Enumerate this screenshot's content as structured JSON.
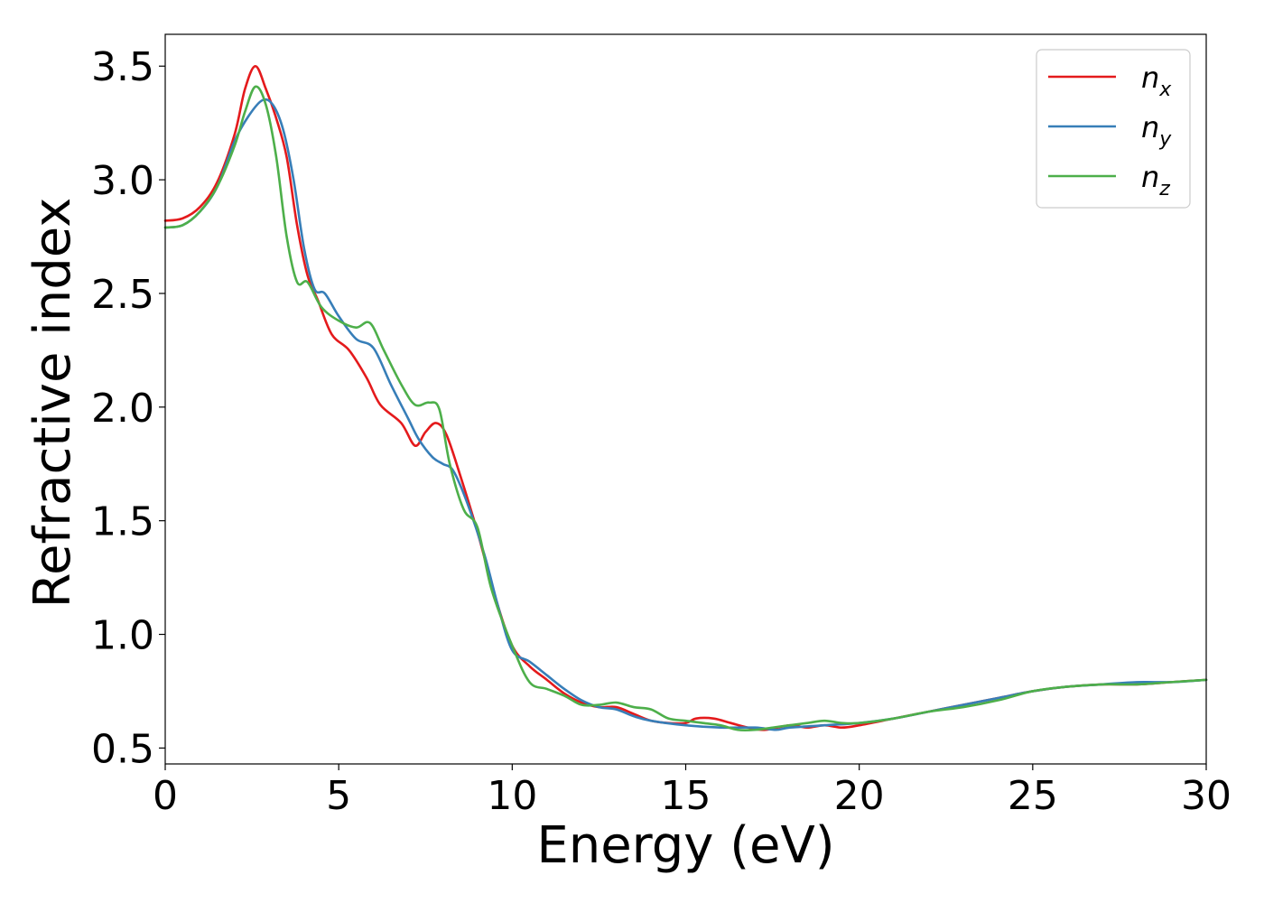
{
  "chart_data": {
    "type": "line",
    "title": "",
    "xlabel": "Energy (eV)",
    "ylabel": "Refractive index",
    "xlim": [
      0,
      30
    ],
    "ylim": [
      0.43,
      3.64
    ],
    "x_ticks": [
      0,
      5,
      10,
      15,
      20,
      25,
      30
    ],
    "x_tick_labels": [
      "0",
      "5",
      "10",
      "15",
      "20",
      "25",
      "30"
    ],
    "y_ticks": [
      0.5,
      1.0,
      1.5,
      2.0,
      2.5,
      3.0,
      3.5
    ],
    "y_tick_labels": [
      "0.5",
      "1.0",
      "1.5",
      "2.0",
      "2.5",
      "3.0",
      "3.5"
    ],
    "grid": false,
    "legend_position": "top-right",
    "series": [
      {
        "name": "n_x",
        "label_base": "n",
        "label_sub": "x",
        "color": "#e41a1c",
        "points": [
          [
            0,
            2.82
          ],
          [
            0.5,
            2.83
          ],
          [
            1.0,
            2.88
          ],
          [
            1.5,
            2.99
          ],
          [
            2.0,
            3.2
          ],
          [
            2.3,
            3.4
          ],
          [
            2.6,
            3.5
          ],
          [
            2.9,
            3.4
          ],
          [
            3.2,
            3.27
          ],
          [
            3.5,
            3.1
          ],
          [
            3.8,
            2.8
          ],
          [
            4.1,
            2.58
          ],
          [
            4.4,
            2.47
          ],
          [
            4.8,
            2.32
          ],
          [
            5.3,
            2.25
          ],
          [
            5.8,
            2.13
          ],
          [
            6.2,
            2.01
          ],
          [
            6.8,
            1.93
          ],
          [
            7.2,
            1.83
          ],
          [
            7.5,
            1.89
          ],
          [
            7.8,
            1.93
          ],
          [
            8.1,
            1.88
          ],
          [
            8.5,
            1.7
          ],
          [
            9.0,
            1.45
          ],
          [
            9.5,
            1.17
          ],
          [
            10.0,
            0.95
          ],
          [
            10.5,
            0.86
          ],
          [
            11.0,
            0.8
          ],
          [
            11.5,
            0.74
          ],
          [
            12.0,
            0.7
          ],
          [
            12.5,
            0.68
          ],
          [
            13.0,
            0.68
          ],
          [
            13.5,
            0.65
          ],
          [
            14.0,
            0.62
          ],
          [
            14.5,
            0.61
          ],
          [
            15.0,
            0.61
          ],
          [
            15.3,
            0.63
          ],
          [
            15.8,
            0.63
          ],
          [
            16.3,
            0.61
          ],
          [
            16.8,
            0.59
          ],
          [
            17.3,
            0.58
          ],
          [
            18.0,
            0.6
          ],
          [
            18.5,
            0.59
          ],
          [
            19.0,
            0.6
          ],
          [
            19.5,
            0.59
          ],
          [
            20.0,
            0.6
          ],
          [
            21.0,
            0.63
          ],
          [
            22.0,
            0.66
          ],
          [
            23.0,
            0.69
          ],
          [
            24.0,
            0.72
          ],
          [
            25.0,
            0.75
          ],
          [
            26.0,
            0.77
          ],
          [
            27.0,
            0.78
          ],
          [
            28.0,
            0.78
          ],
          [
            29.0,
            0.79
          ],
          [
            30.0,
            0.8
          ]
        ]
      },
      {
        "name": "n_y",
        "label_base": "n",
        "label_sub": "y",
        "color": "#377eb8",
        "points": [
          [
            0,
            2.79
          ],
          [
            0.5,
            2.8
          ],
          [
            1.0,
            2.86
          ],
          [
            1.5,
            2.97
          ],
          [
            2.0,
            3.17
          ],
          [
            2.4,
            3.28
          ],
          [
            2.8,
            3.35
          ],
          [
            3.1,
            3.33
          ],
          [
            3.4,
            3.22
          ],
          [
            3.7,
            3.0
          ],
          [
            4.0,
            2.7
          ],
          [
            4.3,
            2.52
          ],
          [
            4.6,
            2.5
          ],
          [
            5.0,
            2.4
          ],
          [
            5.5,
            2.3
          ],
          [
            6.0,
            2.26
          ],
          [
            6.5,
            2.1
          ],
          [
            7.0,
            1.95
          ],
          [
            7.3,
            1.86
          ],
          [
            7.7,
            1.78
          ],
          [
            8.0,
            1.75
          ],
          [
            8.3,
            1.72
          ],
          [
            8.7,
            1.58
          ],
          [
            9.2,
            1.35
          ],
          [
            9.6,
            1.12
          ],
          [
            10.0,
            0.93
          ],
          [
            10.5,
            0.88
          ],
          [
            11.0,
            0.82
          ],
          [
            11.5,
            0.76
          ],
          [
            12.0,
            0.71
          ],
          [
            12.5,
            0.68
          ],
          [
            13.0,
            0.67
          ],
          [
            13.5,
            0.64
          ],
          [
            14.0,
            0.62
          ],
          [
            15.0,
            0.6
          ],
          [
            16.0,
            0.59
          ],
          [
            17.0,
            0.59
          ],
          [
            17.6,
            0.58
          ],
          [
            18.0,
            0.59
          ],
          [
            19.0,
            0.6
          ],
          [
            20.0,
            0.61
          ],
          [
            21.0,
            0.63
          ],
          [
            22.0,
            0.66
          ],
          [
            23.0,
            0.69
          ],
          [
            24.0,
            0.72
          ],
          [
            25.0,
            0.75
          ],
          [
            26.0,
            0.77
          ],
          [
            27.0,
            0.78
          ],
          [
            28.0,
            0.79
          ],
          [
            29.0,
            0.79
          ],
          [
            30.0,
            0.8
          ]
        ]
      },
      {
        "name": "n_z",
        "label_base": "n",
        "label_sub": "z",
        "color": "#4daf4a",
        "points": [
          [
            0,
            2.79
          ],
          [
            0.5,
            2.8
          ],
          [
            1.0,
            2.86
          ],
          [
            1.5,
            2.97
          ],
          [
            2.0,
            3.15
          ],
          [
            2.3,
            3.3
          ],
          [
            2.6,
            3.41
          ],
          [
            2.9,
            3.33
          ],
          [
            3.2,
            3.1
          ],
          [
            3.5,
            2.75
          ],
          [
            3.8,
            2.55
          ],
          [
            4.1,
            2.55
          ],
          [
            4.5,
            2.44
          ],
          [
            5.0,
            2.38
          ],
          [
            5.5,
            2.35
          ],
          [
            5.9,
            2.37
          ],
          [
            6.3,
            2.25
          ],
          [
            6.8,
            2.1
          ],
          [
            7.2,
            2.01
          ],
          [
            7.6,
            2.02
          ],
          [
            7.9,
            1.99
          ],
          [
            8.2,
            1.75
          ],
          [
            8.6,
            1.55
          ],
          [
            9.0,
            1.47
          ],
          [
            9.4,
            1.2
          ],
          [
            10.0,
            0.95
          ],
          [
            10.5,
            0.79
          ],
          [
            11.0,
            0.76
          ],
          [
            11.5,
            0.73
          ],
          [
            12.0,
            0.69
          ],
          [
            12.5,
            0.69
          ],
          [
            13.0,
            0.7
          ],
          [
            13.5,
            0.68
          ],
          [
            14.0,
            0.67
          ],
          [
            14.5,
            0.63
          ],
          [
            15.0,
            0.62
          ],
          [
            15.5,
            0.61
          ],
          [
            16.0,
            0.6
          ],
          [
            16.5,
            0.58
          ],
          [
            17.0,
            0.58
          ],
          [
            17.5,
            0.59
          ],
          [
            18.0,
            0.6
          ],
          [
            18.5,
            0.61
          ],
          [
            19.0,
            0.62
          ],
          [
            19.5,
            0.61
          ],
          [
            20.0,
            0.61
          ],
          [
            21.0,
            0.63
          ],
          [
            22.0,
            0.66
          ],
          [
            23.0,
            0.68
          ],
          [
            24.0,
            0.71
          ],
          [
            25.0,
            0.75
          ],
          [
            26.0,
            0.77
          ],
          [
            27.0,
            0.78
          ],
          [
            28.0,
            0.78
          ],
          [
            29.0,
            0.79
          ],
          [
            30.0,
            0.8
          ]
        ]
      }
    ]
  }
}
